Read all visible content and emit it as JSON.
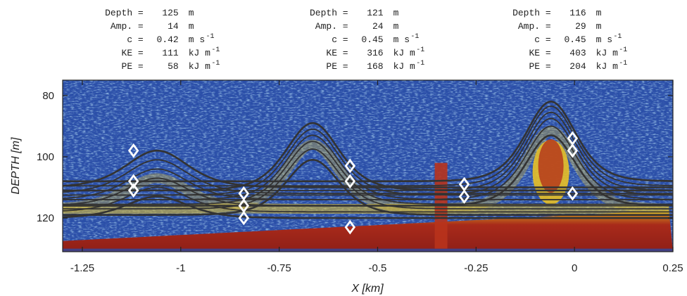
{
  "chart_data": {
    "type": "line",
    "xlabel": "X [km]",
    "ylabel": "DEPTH [m]",
    "xlim": [
      -1.3,
      0.25
    ],
    "ylim": [
      131,
      75
    ],
    "x_ticks": [
      "-1.25",
      "-1",
      "-0.75",
      "-0.5",
      "-0.25",
      "0",
      "0.25"
    ],
    "x_tick_values": [
      -1.25,
      -1.0,
      -0.75,
      -0.5,
      -0.25,
      0.0,
      0.25
    ],
    "y_ticks": [
      "80",
      "100",
      "120"
    ],
    "y_tick_values": [
      80,
      100,
      120
    ],
    "background": "acoustic backscatter echogram",
    "line_color": "#333333",
    "marker_color": "#ffffff",
    "waves": [
      {
        "center_x": -1.06,
        "half_width": 0.105,
        "stats": {
          "depth_label": "Depth =",
          "depth_value": "125",
          "depth_unit": "m",
          "amp_label": "Amp. =",
          "amp_value": "14",
          "amp_unit": "m",
          "c_label": "c =",
          "c_value": "0.42",
          "c_unit": "m s",
          "ke_label": "KE =",
          "ke_value": "111",
          "ke_unit": "kJ m",
          "pe_label": "PE =",
          "pe_value": "58",
          "pe_unit": "kJ m",
          "exponent": "-1"
        },
        "isopycnals": [
          {
            "base": 110,
            "amp": 12
          },
          {
            "base": 112,
            "amp": 11
          },
          {
            "base": 114,
            "amp": 10
          },
          {
            "base": 116,
            "amp": 9
          },
          {
            "base": 118,
            "amp": 8
          },
          {
            "base": 120,
            "amp": 7
          }
        ],
        "markers": [
          {
            "x": -1.12,
            "depth": 98
          },
          {
            "x": -1.12,
            "depth": 108
          },
          {
            "x": -1.12,
            "depth": 111
          }
        ]
      },
      {
        "center_x": -0.665,
        "half_width": 0.09,
        "stats": {
          "depth_label": "Depth =",
          "depth_value": "121",
          "depth_unit": "m",
          "amp_label": "Amp. =",
          "amp_value": "24",
          "amp_unit": "m",
          "c_label": "c =",
          "c_value": "0.45",
          "c_unit": "m s",
          "ke_label": "KE =",
          "ke_value": "316",
          "ke_unit": "kJ m",
          "pe_label": "PE =",
          "pe_value": "168",
          "pe_unit": "kJ m",
          "exponent": "-1"
        },
        "isopycnals": [
          {
            "base": 111,
            "amp": 22
          },
          {
            "base": 112.5,
            "amp": 21.5
          },
          {
            "base": 114,
            "amp": 21
          },
          {
            "base": 115.5,
            "amp": 20.5
          },
          {
            "base": 117,
            "amp": 19.5
          },
          {
            "base": 119,
            "amp": 18
          }
        ],
        "markers": [
          {
            "x": -0.84,
            "depth": 112
          },
          {
            "x": -0.84,
            "depth": 116
          },
          {
            "x": -0.84,
            "depth": 120
          },
          {
            "x": -0.57,
            "depth": 103
          },
          {
            "x": -0.57,
            "depth": 108
          },
          {
            "x": -0.57,
            "depth": 123
          }
        ]
      },
      {
        "center_x": -0.06,
        "half_width": 0.085,
        "stats": {
          "depth_label": "Depth =",
          "depth_value": "116",
          "depth_unit": "m",
          "amp_label": "Amp. =",
          "amp_value": "29",
          "amp_unit": "m",
          "c_label": "c =",
          "c_value": "0.45",
          "c_unit": "m s",
          "ke_label": "KE =",
          "ke_value": "403",
          "ke_unit": "kJ m",
          "pe_label": "PE =",
          "pe_value": "204",
          "pe_unit": "kJ m",
          "exponent": "-1"
        },
        "isopycnals": [
          {
            "base": 108,
            "amp": 26
          },
          {
            "base": 109.5,
            "amp": 26
          },
          {
            "base": 111,
            "amp": 25.5
          },
          {
            "base": 112.5,
            "amp": 25
          },
          {
            "base": 114,
            "amp": 24
          },
          {
            "base": 116,
            "amp": 23
          }
        ],
        "markers": [
          {
            "x": -0.28,
            "depth": 109
          },
          {
            "x": -0.28,
            "depth": 113
          },
          {
            "x": -0.005,
            "depth": 94
          },
          {
            "x": -0.005,
            "depth": 98
          },
          {
            "x": -0.005,
            "depth": 112
          }
        ]
      }
    ]
  }
}
